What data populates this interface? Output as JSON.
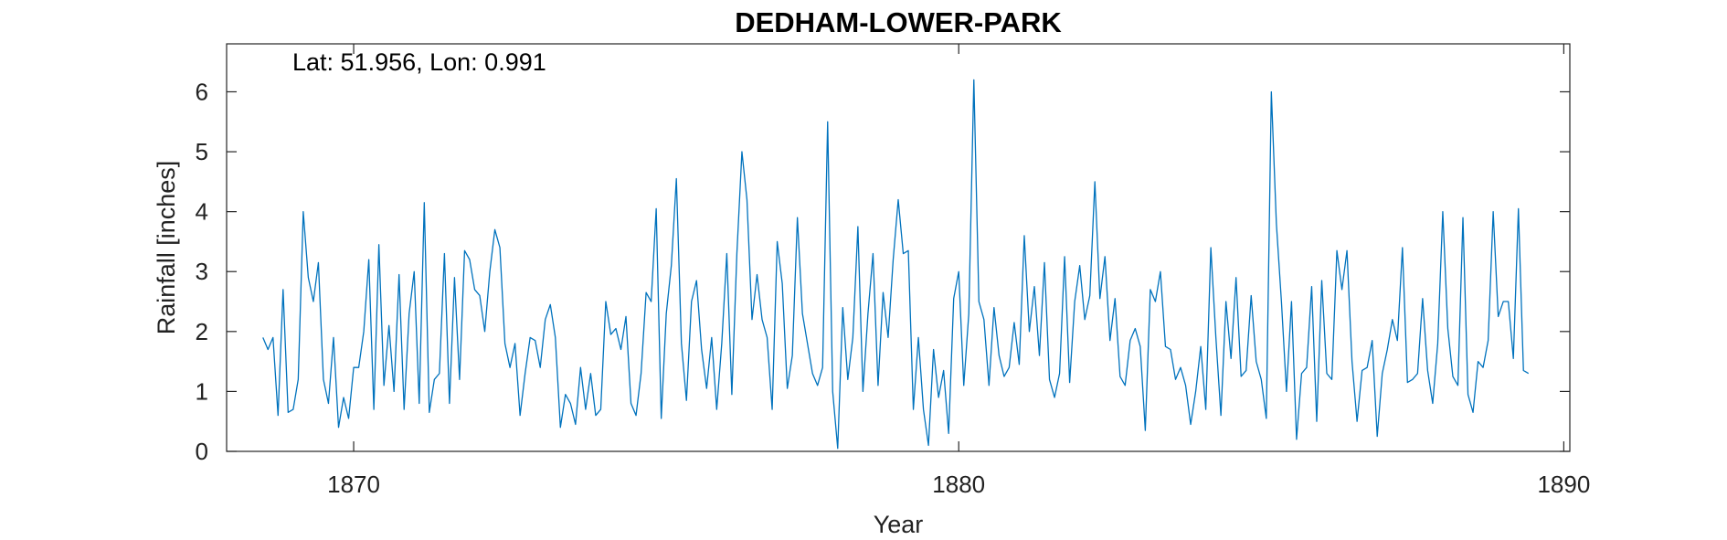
{
  "chart_data": {
    "type": "line",
    "title": "DEDHAM-LOWER-PARK",
    "annotation": "Lat: 51.956, Lon: 0.991",
    "xlabel": "Year",
    "ylabel": "Rainfall [inches]",
    "xlim": [
      1867.9,
      1890.1
    ],
    "ylim": [
      0,
      6.8
    ],
    "xticks": [
      1870,
      1880,
      1890
    ],
    "yticks": [
      0,
      1,
      2,
      3,
      4,
      5,
      6
    ],
    "grid": false,
    "series": [
      {
        "color": "#0072BD",
        "start": 1868.5,
        "step_months": 1,
        "values": [
          1.9,
          1.7,
          1.9,
          0.6,
          2.7,
          0.65,
          0.7,
          1.2,
          4.0,
          2.9,
          2.5,
          3.15,
          1.2,
          0.8,
          1.9,
          0.4,
          0.9,
          0.55,
          1.4,
          1.4,
          2.0,
          3.2,
          0.7,
          3.45,
          1.1,
          2.1,
          1.0,
          2.95,
          0.7,
          2.3,
          3.0,
          0.8,
          4.15,
          0.65,
          1.2,
          1.3,
          3.3,
          0.8,
          2.9,
          1.2,
          3.35,
          3.2,
          2.7,
          2.6,
          2.0,
          3.0,
          3.7,
          3.4,
          1.8,
          1.4,
          1.8,
          0.6,
          1.3,
          1.9,
          1.85,
          1.4,
          2.2,
          2.45,
          1.9,
          0.4,
          0.95,
          0.8,
          0.45,
          1.4,
          0.7,
          1.3,
          0.6,
          0.7,
          2.5,
          1.95,
          2.05,
          1.7,
          2.25,
          0.8,
          0.6,
          1.3,
          2.65,
          2.5,
          4.05,
          0.55,
          2.3,
          3.1,
          4.55,
          1.8,
          0.85,
          2.5,
          2.85,
          1.7,
          1.05,
          1.9,
          0.7,
          1.8,
          3.3,
          0.95,
          3.3,
          5.0,
          4.2,
          2.2,
          2.95,
          2.2,
          1.9,
          0.7,
          3.5,
          2.8,
          1.05,
          1.6,
          3.9,
          2.3,
          1.8,
          1.3,
          1.1,
          1.4,
          5.5,
          1.0,
          0.05,
          2.4,
          1.2,
          1.9,
          3.75,
          1.0,
          2.3,
          3.3,
          1.1,
          2.65,
          1.9,
          3.2,
          4.2,
          3.3,
          3.35,
          0.7,
          1.9,
          0.7,
          0.1,
          1.7,
          0.9,
          1.35,
          0.3,
          2.55,
          3.0,
          1.1,
          2.3,
          6.2,
          2.5,
          2.2,
          1.1,
          2.4,
          1.6,
          1.25,
          1.4,
          2.15,
          1.45,
          3.6,
          2.0,
          2.75,
          1.6,
          3.15,
          1.2,
          0.9,
          1.3,
          3.25,
          1.15,
          2.5,
          3.1,
          2.2,
          2.6,
          4.5,
          2.55,
          3.25,
          1.85,
          2.55,
          1.25,
          1.1,
          1.85,
          2.05,
          1.75,
          0.35,
          2.7,
          2.5,
          3.0,
          1.75,
          1.7,
          1.2,
          1.4,
          1.1,
          0.45,
          1.0,
          1.75,
          0.7,
          3.4,
          1.9,
          0.6,
          2.5,
          1.55,
          2.9,
          1.25,
          1.35,
          2.6,
          1.5,
          1.2,
          0.55,
          6.0,
          3.8,
          2.5,
          1.0,
          2.5,
          0.2,
          1.3,
          1.4,
          2.75,
          0.5,
          2.85,
          1.3,
          1.2,
          3.35,
          2.7,
          3.35,
          1.5,
          0.5,
          1.35,
          1.4,
          1.85,
          0.25,
          1.3,
          1.7,
          2.2,
          1.85,
          3.4,
          1.15,
          1.2,
          1.3,
          2.55,
          1.35,
          0.8,
          1.8,
          4.0,
          2.05,
          1.25,
          1.1,
          3.9,
          0.95,
          0.65,
          1.5,
          1.4,
          1.85,
          4.0,
          2.25,
          2.5,
          2.5,
          1.55,
          4.05,
          1.35,
          1.3
        ]
      }
    ]
  }
}
